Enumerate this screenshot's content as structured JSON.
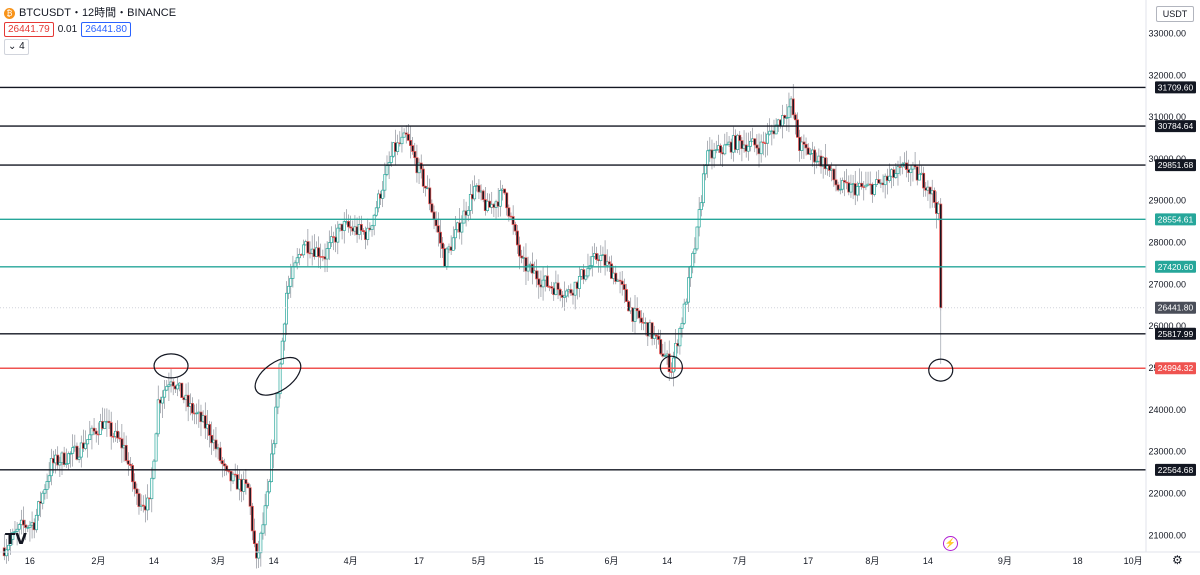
{
  "header": {
    "symbol_line": "BTCUSDT・12時間・BINANCE",
    "bid": "26441.79",
    "spread": "0.01",
    "ask": "26441.80",
    "indicator_toggle": "⌄ 4",
    "currency": "USDT"
  },
  "icons": {
    "coin": "bitcoin-icon",
    "settings": "gear-icon",
    "logo": "tradingview-logo",
    "event": "lightning-icon"
  },
  "colors": {
    "up": "#26a69a",
    "down": "#ef5350",
    "body_up": "#ffffff",
    "candle_border": "#131722",
    "teal_line": "#26a69a",
    "red_line": "#ef5350",
    "black_line": "#131722"
  },
  "chart_data": {
    "type": "candlestick",
    "title": "BTCUSDT・12時間・BINANCE",
    "ylim": [
      20600,
      33800
    ],
    "y_ticks": [
      "33000.00",
      "32000.00",
      "31000.00",
      "30000.00",
      "29000.00",
      "28000.00",
      "27000.00",
      "26000.00",
      "25000.00",
      "24000.00",
      "23000.00",
      "22000.00",
      "21000.00"
    ],
    "x_tick_labels": [
      "16",
      "2月",
      "14",
      "3月",
      "14",
      "4月",
      "17",
      "5月",
      "15",
      "6月",
      "14",
      "7月",
      "17",
      "8月",
      "14",
      "9月",
      "18",
      "10月"
    ],
    "current_price": "26441.80",
    "horizontal_levels": [
      {
        "price": 31709.6,
        "label": "31709.60",
        "color": "black"
      },
      {
        "price": 30784.64,
        "label": "30784.64",
        "color": "black"
      },
      {
        "price": 29851.68,
        "label": "29851.68",
        "color": "black"
      },
      {
        "price": 28554.61,
        "label": "28554.61",
        "color": "teal"
      },
      {
        "price": 27420.6,
        "label": "27420.60",
        "color": "teal"
      },
      {
        "price": 25817.99,
        "label": "25817.99",
        "color": "black"
      },
      {
        "price": 24994.32,
        "label": "24994.32",
        "color": "red"
      },
      {
        "price": 22564.68,
        "label": "22564.68",
        "color": "black"
      }
    ],
    "price_path": [
      {
        "date": "2023-01-10",
        "price": 20700
      },
      {
        "date": "2023-01-14",
        "price": 21200
      },
      {
        "date": "2023-01-17",
        "price": 21300
      },
      {
        "date": "2023-01-21",
        "price": 22700
      },
      {
        "date": "2023-01-27",
        "price": 23000
      },
      {
        "date": "2023-02-02",
        "price": 23700
      },
      {
        "date": "2023-02-07",
        "price": 23100
      },
      {
        "date": "2023-02-10",
        "price": 21900
      },
      {
        "date": "2023-02-13",
        "price": 21700
      },
      {
        "date": "2023-02-15",
        "price": 24200
      },
      {
        "date": "2023-02-18",
        "price": 24800
      },
      {
        "date": "2023-02-22",
        "price": 24100
      },
      {
        "date": "2023-02-27",
        "price": 23500
      },
      {
        "date": "2023-03-03",
        "price": 22400
      },
      {
        "date": "2023-03-08",
        "price": 22100
      },
      {
        "date": "2023-03-10",
        "price": 20300
      },
      {
        "date": "2023-03-13",
        "price": 22200
      },
      {
        "date": "2023-03-15",
        "price": 24500
      },
      {
        "date": "2023-03-17",
        "price": 26800
      },
      {
        "date": "2023-03-21",
        "price": 28000
      },
      {
        "date": "2023-03-26",
        "price": 27700
      },
      {
        "date": "2023-03-30",
        "price": 28400
      },
      {
        "date": "2023-04-05",
        "price": 28200
      },
      {
        "date": "2023-04-11",
        "price": 30200
      },
      {
        "date": "2023-04-14",
        "price": 30500
      },
      {
        "date": "2023-04-19",
        "price": 29200
      },
      {
        "date": "2023-04-23",
        "price": 27600
      },
      {
        "date": "2023-04-26",
        "price": 28300
      },
      {
        "date": "2023-04-30",
        "price": 29300
      },
      {
        "date": "2023-05-03",
        "price": 28800
      },
      {
        "date": "2023-05-07",
        "price": 29200
      },
      {
        "date": "2023-05-11",
        "price": 27500
      },
      {
        "date": "2023-05-17",
        "price": 27000
      },
      {
        "date": "2023-05-22",
        "price": 26800
      },
      {
        "date": "2023-05-29",
        "price": 27700
      },
      {
        "date": "2023-06-02",
        "price": 27200
      },
      {
        "date": "2023-06-06",
        "price": 26300
      },
      {
        "date": "2023-06-10",
        "price": 25900
      },
      {
        "date": "2023-06-15",
        "price": 25000
      },
      {
        "date": "2023-06-18",
        "price": 26400
      },
      {
        "date": "2023-06-21",
        "price": 28200
      },
      {
        "date": "2023-06-23",
        "price": 30000
      },
      {
        "date": "2023-06-30",
        "price": 30400
      },
      {
        "date": "2023-07-06",
        "price": 30300
      },
      {
        "date": "2023-07-13",
        "price": 31300
      },
      {
        "date": "2023-07-15",
        "price": 30300
      },
      {
        "date": "2023-07-21",
        "price": 29900
      },
      {
        "date": "2023-07-24",
        "price": 29300
      },
      {
        "date": "2023-07-31",
        "price": 29300
      },
      {
        "date": "2023-08-03",
        "price": 29400
      },
      {
        "date": "2023-08-09",
        "price": 29800
      },
      {
        "date": "2023-08-14",
        "price": 29400
      },
      {
        "date": "2023-08-17",
        "price": 28600
      },
      {
        "date": "2023-08-17",
        "price": 26441.8
      }
    ],
    "ellipse_annotations": [
      {
        "date": "2023-02-18",
        "price": 25050
      },
      {
        "date": "2023-03-15",
        "price": 24800
      },
      {
        "date": "2023-06-15",
        "price": 25020
      },
      {
        "date": "2023-08-17",
        "price": 24950
      }
    ]
  }
}
